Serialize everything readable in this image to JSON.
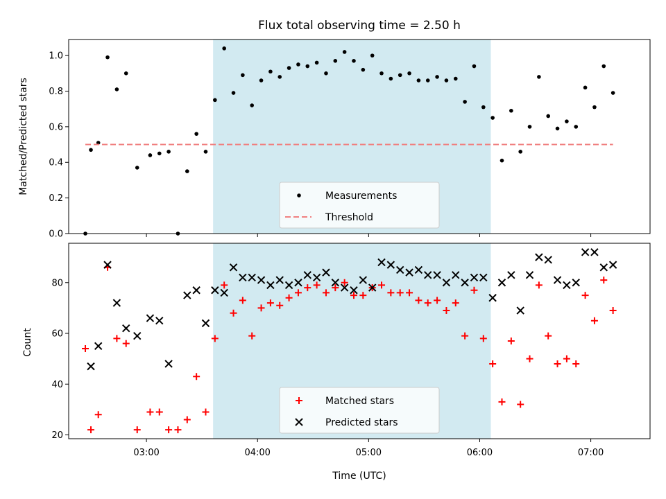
{
  "chart_data": [
    {
      "type": "scatter",
      "title": "Flux total observing time = 2.50 h",
      "xlabel": "",
      "ylabel": "Matched/Predicted stars",
      "ylim": [
        0,
        1.09
      ],
      "yticks": [
        "0.0",
        "0.2",
        "0.4",
        "0.6",
        "0.8",
        "1.0"
      ],
      "xlim": [
        "02:18",
        "07:32"
      ],
      "shaded_interval": [
        "03:36",
        "06:06"
      ],
      "shade_color": "#add8e6",
      "legend_position": "bottom-center",
      "series": [
        {
          "name": "Measurements",
          "kind": "dots",
          "color": "#000000",
          "points": [
            [
              "02:27",
              0.0
            ],
            [
              "02:30",
              0.47
            ],
            [
              "02:34",
              0.51
            ],
            [
              "02:39",
              0.99
            ],
            [
              "02:44",
              0.81
            ],
            [
              "02:49",
              0.9
            ],
            [
              "02:55",
              0.37
            ],
            [
              "03:02",
              0.44
            ],
            [
              "03:07",
              0.45
            ],
            [
              "03:12",
              0.46
            ],
            [
              "03:17",
              0.0
            ],
            [
              "03:22",
              0.35
            ],
            [
              "03:27",
              0.56
            ],
            [
              "03:32",
              0.46
            ],
            [
              "03:37",
              0.75
            ],
            [
              "03:42",
              1.04
            ],
            [
              "03:47",
              0.79
            ],
            [
              "03:52",
              0.89
            ],
            [
              "03:57",
              0.72
            ],
            [
              "04:02",
              0.86
            ],
            [
              "04:07",
              0.91
            ],
            [
              "04:12",
              0.88
            ],
            [
              "04:17",
              0.93
            ],
            [
              "04:22",
              0.95
            ],
            [
              "04:27",
              0.94
            ],
            [
              "04:32",
              0.96
            ],
            [
              "04:37",
              0.9
            ],
            [
              "04:42",
              0.97
            ],
            [
              "04:47",
              1.02
            ],
            [
              "04:52",
              0.97
            ],
            [
              "04:57",
              0.92
            ],
            [
              "05:02",
              1.0
            ],
            [
              "05:07",
              0.9
            ],
            [
              "05:12",
              0.87
            ],
            [
              "05:17",
              0.89
            ],
            [
              "05:22",
              0.9
            ],
            [
              "05:27",
              0.86
            ],
            [
              "05:32",
              0.86
            ],
            [
              "05:37",
              0.88
            ],
            [
              "05:42",
              0.86
            ],
            [
              "05:47",
              0.87
            ],
            [
              "05:52",
              0.74
            ],
            [
              "05:57",
              0.94
            ],
            [
              "06:02",
              0.71
            ],
            [
              "06:07",
              0.65
            ],
            [
              "06:12",
              0.41
            ],
            [
              "06:17",
              0.69
            ],
            [
              "06:22",
              0.46
            ],
            [
              "06:27",
              0.6
            ],
            [
              "06:32",
              0.88
            ],
            [
              "06:37",
              0.66
            ],
            [
              "06:42",
              0.59
            ],
            [
              "06:47",
              0.63
            ],
            [
              "06:52",
              0.6
            ],
            [
              "06:57",
              0.82
            ],
            [
              "07:02",
              0.71
            ],
            [
              "07:07",
              0.94
            ],
            [
              "07:12",
              0.79
            ]
          ]
        },
        {
          "name": "Threshold",
          "kind": "dashed-line",
          "color": "#f08080",
          "points": [
            [
              "02:27",
              0.5
            ],
            [
              "07:12",
              0.5
            ]
          ]
        }
      ]
    },
    {
      "type": "scatter",
      "title": "",
      "xlabel": "Time (UTC)",
      "ylabel": "Count",
      "ylim": [
        18.5,
        95.5
      ],
      "yticks": [
        "20",
        "40",
        "60",
        "80"
      ],
      "xlim": [
        "02:18",
        "07:32"
      ],
      "xticks": [
        "03:00",
        "04:00",
        "05:00",
        "06:00",
        "07:00"
      ],
      "shaded_interval": [
        "03:36",
        "06:06"
      ],
      "shade_color": "#add8e6",
      "legend_position": "bottom-center",
      "series": [
        {
          "name": "Matched stars",
          "kind": "plus",
          "color": "#ff0000",
          "points": [
            [
              "02:27",
              54
            ],
            [
              "02:30",
              22
            ],
            [
              "02:34",
              28
            ],
            [
              "02:39",
              86
            ],
            [
              "02:44",
              58
            ],
            [
              "02:49",
              56
            ],
            [
              "02:55",
              22
            ],
            [
              "03:02",
              29
            ],
            [
              "03:07",
              29
            ],
            [
              "03:12",
              22
            ],
            [
              "03:17",
              22
            ],
            [
              "03:22",
              26
            ],
            [
              "03:27",
              43
            ],
            [
              "03:32",
              29
            ],
            [
              "03:37",
              58
            ],
            [
              "03:42",
              79
            ],
            [
              "03:47",
              68
            ],
            [
              "03:52",
              73
            ],
            [
              "03:57",
              59
            ],
            [
              "04:02",
              70
            ],
            [
              "04:07",
              72
            ],
            [
              "04:12",
              71
            ],
            [
              "04:17",
              74
            ],
            [
              "04:22",
              76
            ],
            [
              "04:27",
              78
            ],
            [
              "04:32",
              79
            ],
            [
              "04:37",
              76
            ],
            [
              "04:42",
              78
            ],
            [
              "04:47",
              80
            ],
            [
              "04:52",
              75
            ],
            [
              "04:57",
              75
            ],
            [
              "05:02",
              78
            ],
            [
              "05:07",
              79
            ],
            [
              "05:12",
              76
            ],
            [
              "05:17",
              76
            ],
            [
              "05:22",
              76
            ],
            [
              "05:27",
              73
            ],
            [
              "05:32",
              72
            ],
            [
              "05:37",
              73
            ],
            [
              "05:42",
              69
            ],
            [
              "05:47",
              72
            ],
            [
              "05:52",
              59
            ],
            [
              "05:57",
              77
            ],
            [
              "06:02",
              58
            ],
            [
              "06:07",
              48
            ],
            [
              "06:12",
              33
            ],
            [
              "06:17",
              57
            ],
            [
              "06:22",
              32
            ],
            [
              "06:27",
              50
            ],
            [
              "06:32",
              79
            ],
            [
              "06:37",
              59
            ],
            [
              "06:42",
              48
            ],
            [
              "06:47",
              50
            ],
            [
              "06:52",
              48
            ],
            [
              "06:57",
              75
            ],
            [
              "07:02",
              65
            ],
            [
              "07:07",
              81
            ],
            [
              "07:12",
              69
            ]
          ]
        },
        {
          "name": "Predicted stars",
          "kind": "cross",
          "color": "#000000",
          "points": [
            [
              "02:30",
              47
            ],
            [
              "02:34",
              55
            ],
            [
              "02:39",
              87
            ],
            [
              "02:44",
              72
            ],
            [
              "02:49",
              62
            ],
            [
              "02:55",
              59
            ],
            [
              "03:02",
              66
            ],
            [
              "03:07",
              65
            ],
            [
              "03:12",
              48
            ],
            [
              "03:22",
              75
            ],
            [
              "03:27",
              77
            ],
            [
              "03:32",
              64
            ],
            [
              "03:37",
              77
            ],
            [
              "03:42",
              76
            ],
            [
              "03:47",
              86
            ],
            [
              "03:52",
              82
            ],
            [
              "03:57",
              82
            ],
            [
              "04:02",
              81
            ],
            [
              "04:07",
              79
            ],
            [
              "04:12",
              81
            ],
            [
              "04:17",
              79
            ],
            [
              "04:22",
              80
            ],
            [
              "04:27",
              83
            ],
            [
              "04:32",
              82
            ],
            [
              "04:37",
              84
            ],
            [
              "04:42",
              80
            ],
            [
              "04:47",
              78
            ],
            [
              "04:52",
              77
            ],
            [
              "04:57",
              81
            ],
            [
              "05:02",
              78
            ],
            [
              "05:07",
              88
            ],
            [
              "05:12",
              87
            ],
            [
              "05:17",
              85
            ],
            [
              "05:22",
              84
            ],
            [
              "05:27",
              85
            ],
            [
              "05:32",
              83
            ],
            [
              "05:37",
              83
            ],
            [
              "05:42",
              80
            ],
            [
              "05:47",
              83
            ],
            [
              "05:52",
              80
            ],
            [
              "05:57",
              82
            ],
            [
              "06:02",
              82
            ],
            [
              "06:07",
              74
            ],
            [
              "06:12",
              80
            ],
            [
              "06:17",
              83
            ],
            [
              "06:22",
              69
            ],
            [
              "06:27",
              83
            ],
            [
              "06:32",
              90
            ],
            [
              "06:37",
              89
            ],
            [
              "06:42",
              81
            ],
            [
              "06:47",
              79
            ],
            [
              "06:52",
              80
            ],
            [
              "06:57",
              92
            ],
            [
              "07:02",
              92
            ],
            [
              "07:07",
              86
            ],
            [
              "07:12",
              87
            ]
          ]
        }
      ]
    }
  ]
}
